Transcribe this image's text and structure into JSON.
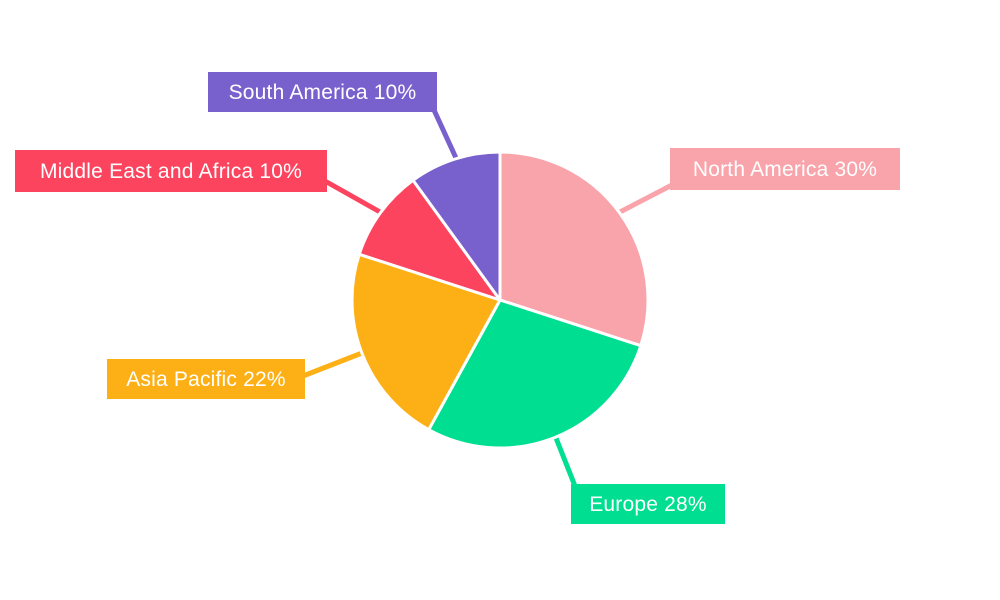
{
  "chart_data": {
    "type": "pie",
    "title": "",
    "total": 100,
    "unit": "%",
    "segments": [
      {
        "name": "North America",
        "value": 30,
        "label": "North America 30%",
        "color": "#F9A4AA"
      },
      {
        "name": "Europe",
        "value": 28,
        "label": "Europe 28%",
        "color": "#00DE91"
      },
      {
        "name": "Asia Pacific",
        "value": 22,
        "label": "Asia Pacific 22%",
        "color": "#FCB016"
      },
      {
        "name": "Middle East and Africa",
        "value": 10,
        "label": "Middle East and Africa 10%",
        "color": "#FC445F"
      },
      {
        "name": "South America",
        "value": 10,
        "label": "South America 10%",
        "color": "#7961CD"
      }
    ],
    "layout_hints": {
      "start_angle_deg": 0,
      "direction": "clockwise",
      "legend": "none",
      "label_style": "colored callout boxes with leader lines",
      "label_text_color": "#FFFFFF",
      "background_color": "#FFFFFF",
      "slice_separator_color": "#FFFFFF"
    }
  }
}
